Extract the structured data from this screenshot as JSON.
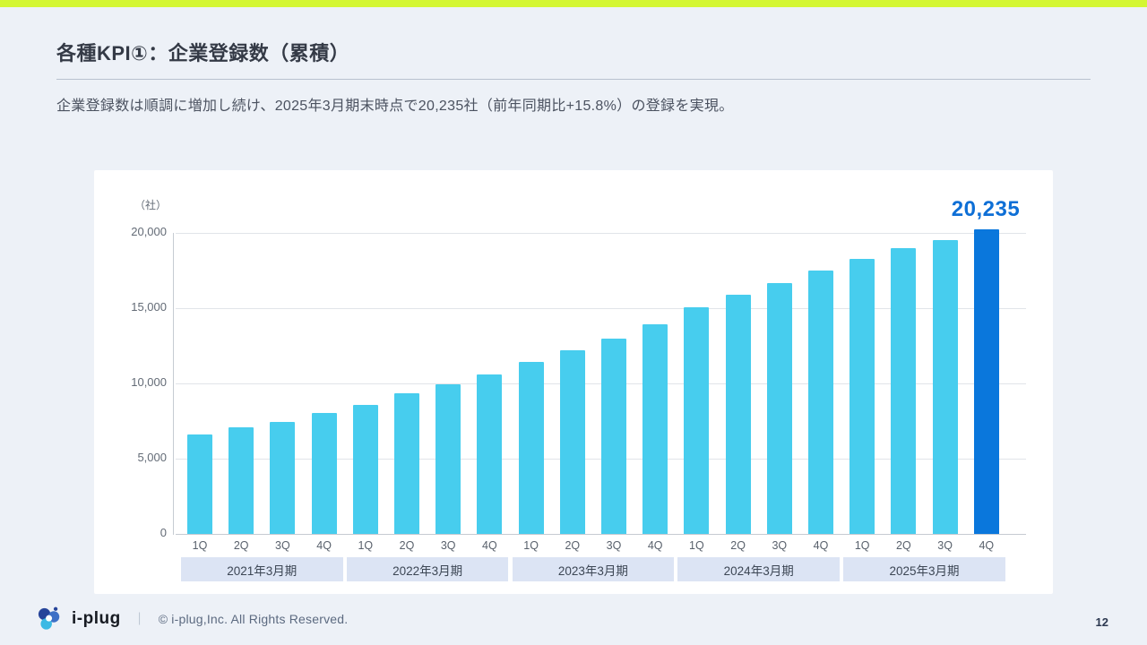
{
  "slide": {
    "title": "各種KPI①：企業登録数（累積）",
    "subtitle": "企業登録数は順調に増加し続け、2025年3月期末時点で20,235社（前年同期比+15.8%）の登録を実現。",
    "page_number": "12",
    "accent_color": "#d4f733",
    "background_color": "#edf1f7"
  },
  "chart_data": {
    "type": "bar",
    "title": "",
    "unit_label": "（社）",
    "ylabel": "社",
    "ylim": [
      0,
      20000
    ],
    "y_ticks": [
      0,
      5000,
      10000,
      15000,
      20000
    ],
    "grid": true,
    "bar_color": "#47cdee",
    "highlight_bar_color": "#0a77dc",
    "highlight_value_color": "#0e6fd6",
    "highlight_label": "20,235",
    "categories": [
      "1Q",
      "2Q",
      "3Q",
      "4Q",
      "1Q",
      "2Q",
      "3Q",
      "4Q",
      "1Q",
      "2Q",
      "3Q",
      "4Q",
      "1Q",
      "2Q",
      "3Q",
      "4Q",
      "1Q",
      "2Q",
      "3Q",
      "4Q"
    ],
    "groups": [
      {
        "label": "2021年3月期",
        "quarters": [
          "1Q",
          "2Q",
          "3Q",
          "4Q"
        ],
        "values": [
          6600,
          7100,
          7450,
          8050
        ]
      },
      {
        "label": "2022年3月期",
        "quarters": [
          "1Q",
          "2Q",
          "3Q",
          "4Q"
        ],
        "values": [
          8600,
          9350,
          9950,
          10600
        ]
      },
      {
        "label": "2023年3月期",
        "quarters": [
          "1Q",
          "2Q",
          "3Q",
          "4Q"
        ],
        "values": [
          11400,
          12200,
          13000,
          13950
        ]
      },
      {
        "label": "2024年3月期",
        "quarters": [
          "1Q",
          "2Q",
          "3Q",
          "4Q"
        ],
        "values": [
          15050,
          15900,
          16650,
          17474
        ]
      },
      {
        "label": "2025年3月期",
        "quarters": [
          "1Q",
          "2Q",
          "3Q",
          "4Q"
        ],
        "values": [
          18250,
          19000,
          19550,
          20235
        ]
      }
    ]
  },
  "footer": {
    "logo_text": "i-plug",
    "separator": "｜",
    "copyright": "© i-plug,Inc. All Rights Reserved."
  }
}
